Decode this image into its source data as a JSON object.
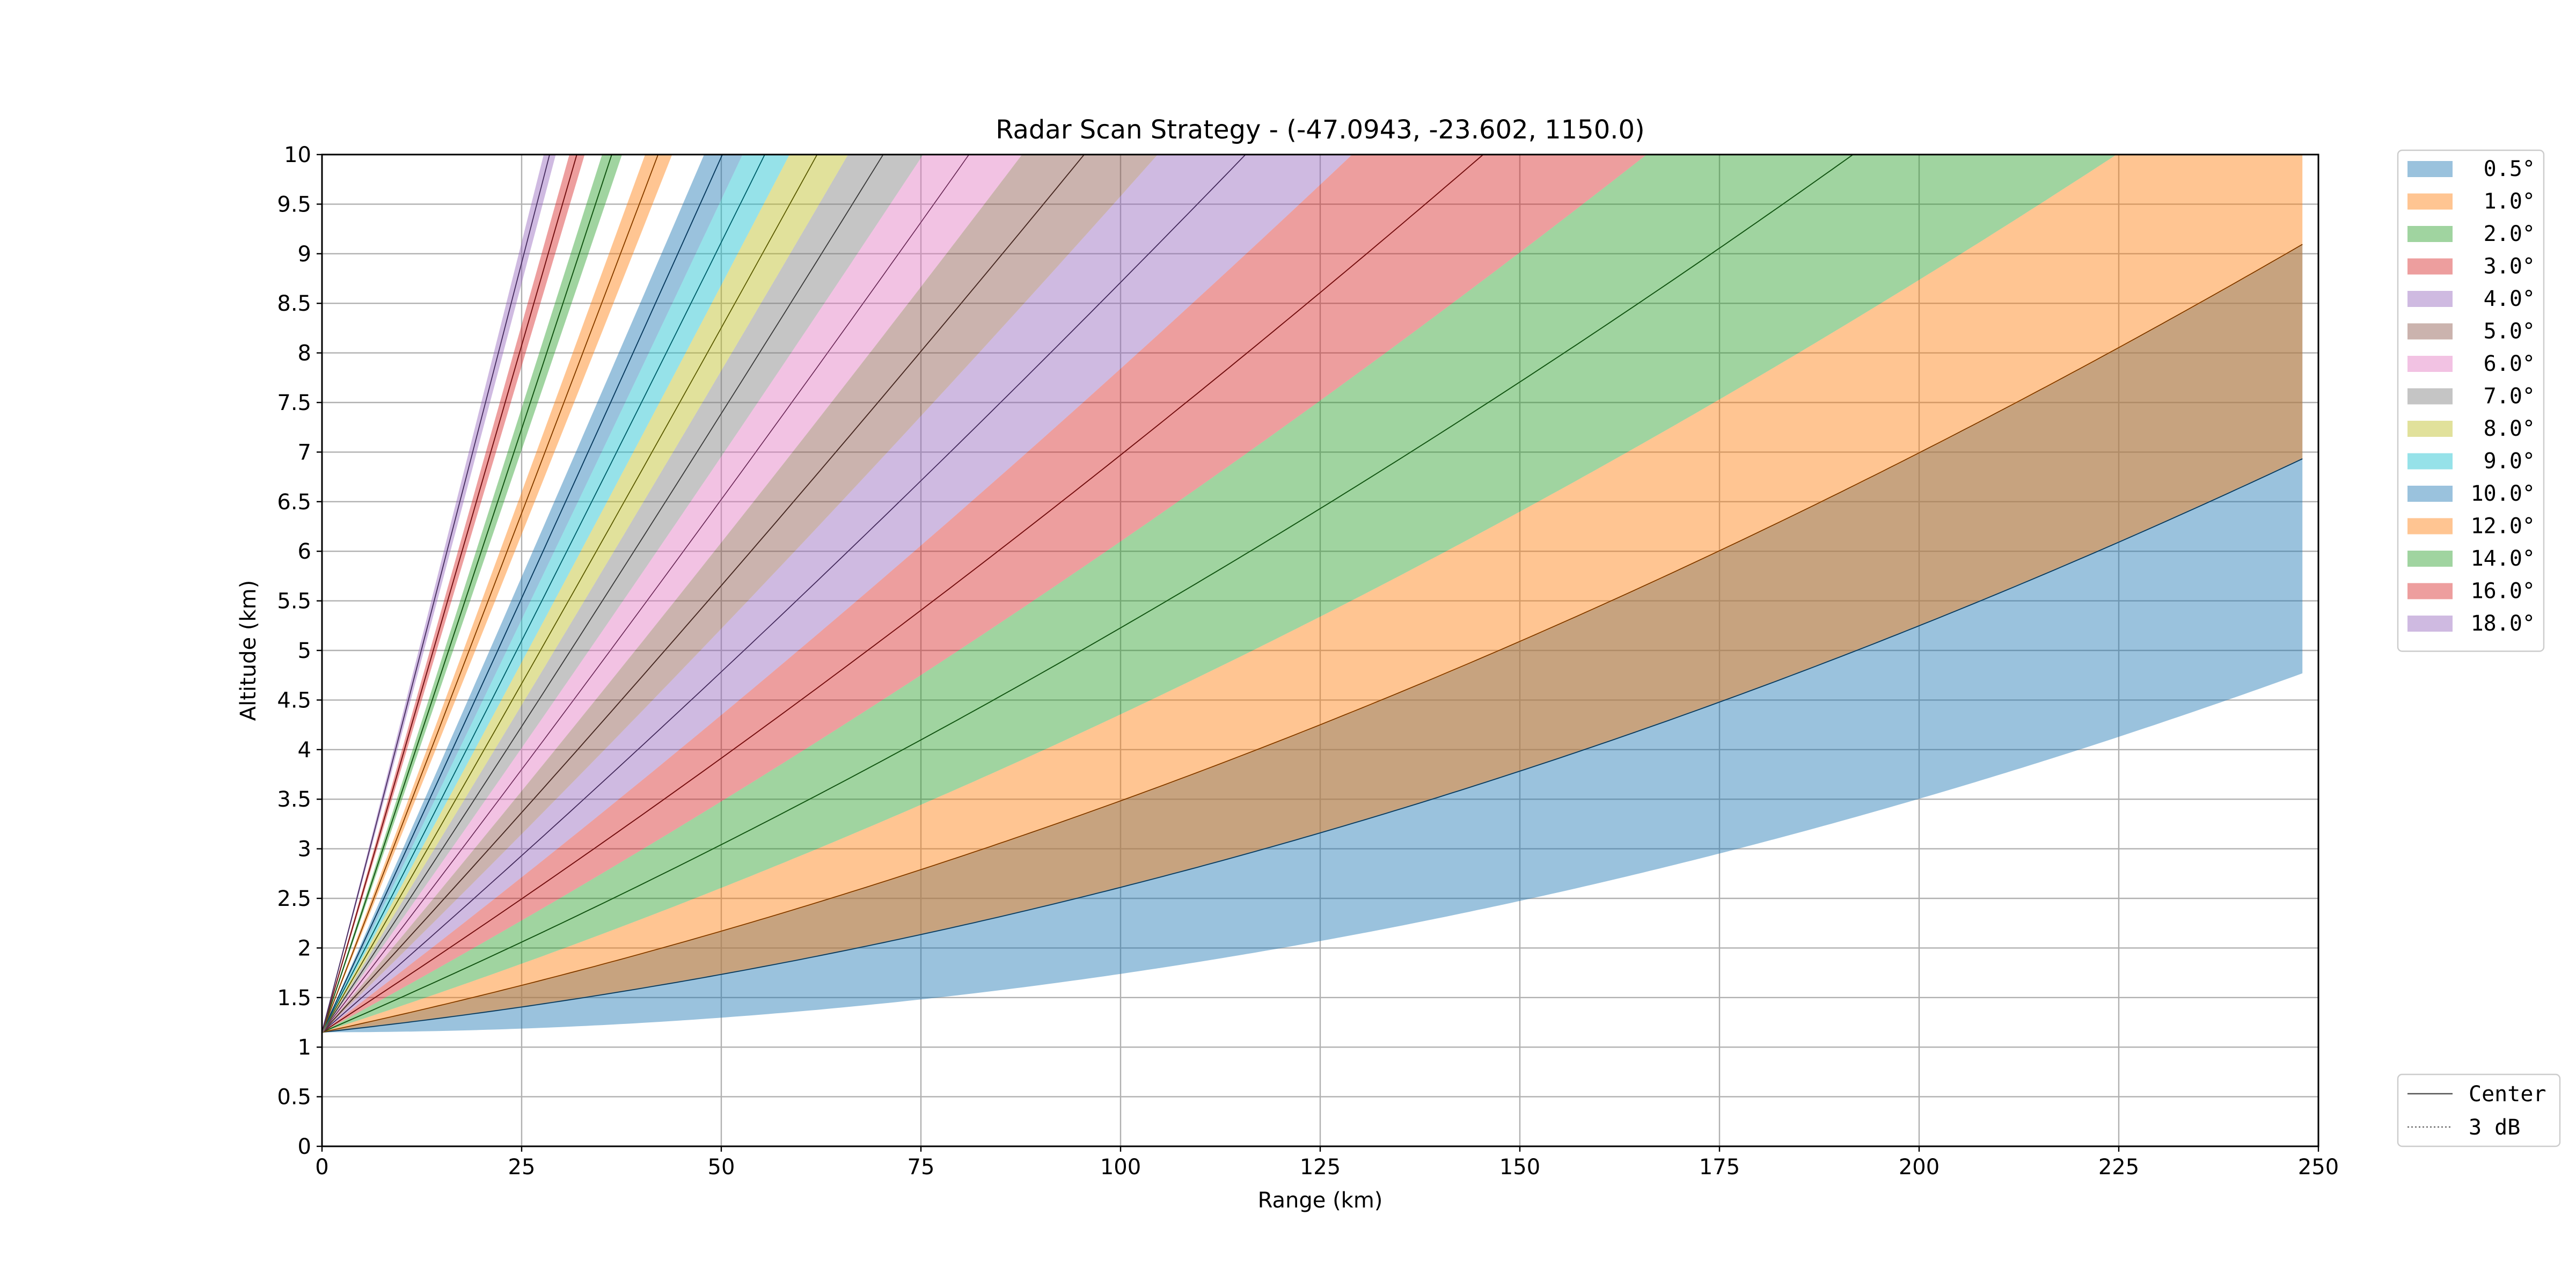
{
  "chart_data": {
    "type": "area",
    "title": "Radar Scan Strategy - (-47.0943, -23.602, 1150.0)",
    "xlabel": "Range (km)",
    "ylabel": "Altitude (km)",
    "xlim": [
      0,
      250
    ],
    "ylim": [
      0,
      10
    ],
    "xticks": [
      "0",
      "25",
      "50",
      "75",
      "100",
      "125",
      "150",
      "175",
      "200",
      "225",
      "250"
    ],
    "yticks": [
      "0",
      "0.5",
      "1",
      "1.5",
      "2",
      "2.5",
      "3",
      "3.5",
      "4",
      "4.5",
      "5",
      "5.5",
      "6",
      "6.5",
      "7",
      "7.5",
      "8",
      "8.5",
      "9",
      "9.5",
      "10"
    ],
    "grid": true,
    "legend_position": "right-top",
    "max_range_km": 248,
    "radar_altitude_km": 1.15,
    "beamwidth_deg": 1.0,
    "series": [
      {
        "name": "0.5°",
        "elevation_deg": 0.5,
        "color": "#1f77b4"
      },
      {
        "name": "1.0°",
        "elevation_deg": 1.0,
        "color": "#ff7f0e"
      },
      {
        "name": "2.0°",
        "elevation_deg": 2.0,
        "color": "#2ca02c"
      },
      {
        "name": "3.0°",
        "elevation_deg": 3.0,
        "color": "#d62728"
      },
      {
        "name": "4.0°",
        "elevation_deg": 4.0,
        "color": "#9467bd"
      },
      {
        "name": "5.0°",
        "elevation_deg": 5.0,
        "color": "#8c564b"
      },
      {
        "name": "6.0°",
        "elevation_deg": 6.0,
        "color": "#e377c2"
      },
      {
        "name": "7.0°",
        "elevation_deg": 7.0,
        "color": "#7f7f7f"
      },
      {
        "name": "8.0°",
        "elevation_deg": 8.0,
        "color": "#bcbd22"
      },
      {
        "name": "9.0°",
        "elevation_deg": 9.0,
        "color": "#17becf"
      },
      {
        "name": "10.0°",
        "elevation_deg": 10.0,
        "color": "#1f77b4"
      },
      {
        "name": "12.0°",
        "elevation_deg": 12.0,
        "color": "#ff7f0e"
      },
      {
        "name": "14.0°",
        "elevation_deg": 14.0,
        "color": "#2ca02c"
      },
      {
        "name": "16.0°",
        "elevation_deg": 16.0,
        "color": "#d62728"
      },
      {
        "name": "18.0°",
        "elevation_deg": 18.0,
        "color": "#9467bd"
      }
    ],
    "line_legend": [
      {
        "name": "Center",
        "style": "solid"
      },
      {
        "name": "3 dB",
        "style": "dotted"
      }
    ]
  }
}
